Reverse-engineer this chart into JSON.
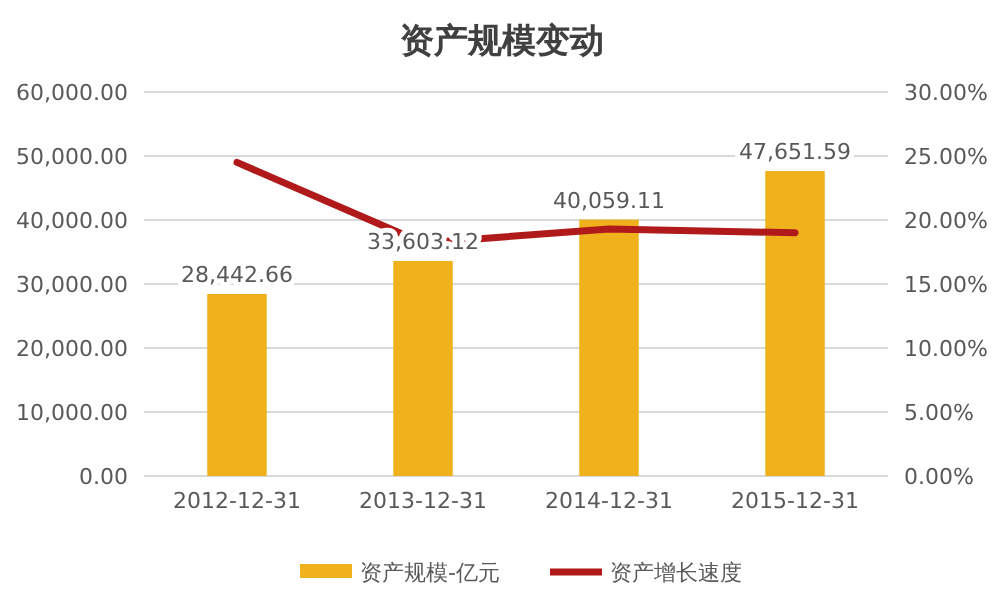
{
  "chart_data": {
    "type": "bar",
    "title": "资产规模变动",
    "categories": [
      "2012-12-31",
      "2013-12-31",
      "2014-12-31",
      "2015-12-31"
    ],
    "series": [
      {
        "name": "资产规模-亿元",
        "color": "#f0b21c",
        "values": [
          28442.66,
          33603.12,
          40059.11,
          47651.59
        ],
        "value_labels": [
          "28,442.66",
          "33,603.12",
          "40,059.11",
          "47,651.59"
        ]
      },
      {
        "name": "资产增长速度",
        "type": "line",
        "axis": "y2",
        "color": "#b01a1a",
        "values": [
          24.5,
          18.2,
          19.3,
          19.0
        ]
      }
    ],
    "ylim": [
      0,
      60000
    ],
    "yticks": [
      {
        "value": 0,
        "label": "0.00"
      },
      {
        "value": 10000,
        "label": "10,000.00"
      },
      {
        "value": 20000,
        "label": "20,000.00"
      },
      {
        "value": 30000,
        "label": "30,000.00"
      },
      {
        "value": 40000,
        "label": "40,000.00"
      },
      {
        "value": 50000,
        "label": "50,000.00"
      },
      {
        "value": 60000,
        "label": "60,000.00"
      }
    ],
    "y2lim": [
      0,
      30
    ],
    "y2ticks": [
      {
        "value": 0,
        "label": "0.00%"
      },
      {
        "value": 5,
        "label": "5.00%"
      },
      {
        "value": 10,
        "label": "10.00%"
      },
      {
        "value": 15,
        "label": "15.00%"
      },
      {
        "value": 20,
        "label": "20.00%"
      },
      {
        "value": 25,
        "label": "25.00%"
      },
      {
        "value": 30,
        "label": "30.00%"
      }
    ],
    "grid": "y",
    "legend": "bottom",
    "marker": "none",
    "line_style": "solid"
  }
}
